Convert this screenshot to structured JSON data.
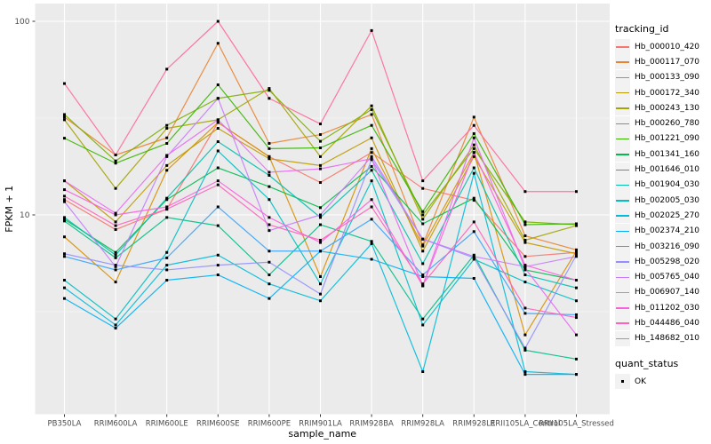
{
  "chart_data": {
    "type": "line",
    "title": "",
    "xlabel": "sample_name",
    "ylabel": "FPKM + 1",
    "y_scale": "log10",
    "ylim": [
      0.95,
      120
    ],
    "y_ticks": [
      10,
      100
    ],
    "y_minor_gridlines": [
      3.162,
      31.62
    ],
    "grid": true,
    "legend_position": "right",
    "legend_title": "tracking_id",
    "point_shape": "filled-square",
    "point_color": "#000000",
    "panel_bg": "#EBEBEB",
    "grid_color": "#FFFFFF",
    "axis_text_color": "#4D4D4D",
    "axis_title_color": "#000000",
    "legend_key_bg": "#F2F2F2",
    "quant_legend": {
      "title": "quant_status",
      "items": [
        {
          "label": "OK",
          "shape": "filled-square",
          "color": "#000000"
        }
      ]
    },
    "categories": [
      "PB350LA",
      "RRIM600LA",
      "RRIM600LE",
      "RRIM600SE",
      "RRIM600PE",
      "RRIM901LA",
      "RRIM928BA",
      "RRIM928LA",
      "RRIM928LE",
      "RRII105LA_Control",
      "RRII105LA_Stressed"
    ],
    "series": [
      {
        "name": "Hb_000010_420",
        "color": "#F8766D",
        "values": [
          12,
          8.4,
          10.7,
          30,
          20,
          14.7,
          21,
          13.7,
          11.9,
          6.1,
          6.4
        ]
      },
      {
        "name": "Hb_000117_070",
        "color": "#EA8331",
        "values": [
          32,
          20.4,
          25,
          77,
          23.4,
          26,
          33,
          7.0,
          32,
          7.8,
          6.6
        ]
      },
      {
        "name": "Hb_000133_090",
        "color": "#D89000",
        "values": [
          7.7,
          4.5,
          17,
          30,
          20,
          4.8,
          22,
          6.9,
          21,
          2.4,
          6.5
        ]
      },
      {
        "name": "Hb_000172_340",
        "color": "#C09B00",
        "values": [
          15,
          9.2,
          18,
          28,
          19.5,
          18,
          25,
          6.5,
          20,
          7.2,
          6.3
        ]
      },
      {
        "name": "Hb_000243_130",
        "color": "#A3A500",
        "values": [
          31,
          13.7,
          28,
          31,
          45,
          20,
          36.6,
          9.5,
          23,
          7.4,
          8.8
        ]
      },
      {
        "name": "Hb_000260_780",
        "color": "#7CAE00",
        "values": [
          33,
          19,
          29,
          40,
          44,
          24,
          35,
          10,
          22,
          9.2,
          8.9
        ]
      },
      {
        "name": "Hb_001221_090",
        "color": "#39B600",
        "values": [
          24.9,
          18.5,
          23.4,
          47,
          22,
          22.2,
          29,
          10.4,
          26.3,
          8.9,
          9.0
        ]
      },
      {
        "name": "Hb_001341_160",
        "color": "#00BB4E",
        "values": [
          9.5,
          6.4,
          12,
          17.5,
          14,
          10.9,
          17.8,
          9.0,
          12.2,
          5.2,
          4.6
        ]
      },
      {
        "name": "Hb_001646_010",
        "color": "#00C087",
        "values": [
          9.3,
          6.0,
          9.7,
          8.8,
          4.9,
          8.9,
          7.3,
          2.9,
          6.2,
          2.0,
          1.8
        ]
      },
      {
        "name": "Hb_001904_030",
        "color": "#00C0AF",
        "values": [
          9.7,
          6.2,
          12.2,
          23.9,
          16,
          9.7,
          17,
          5.6,
          17.5,
          4.9,
          4.2
        ]
      },
      {
        "name": "Hb_002005_030",
        "color": "#00BFC4",
        "values": [
          4.6,
          2.9,
          6.4,
          21.4,
          12,
          4.4,
          15,
          2.7,
          5.9,
          4.5,
          3.6
        ]
      },
      {
        "name": "Hb_002025_270",
        "color": "#00BBDA",
        "values": [
          4.2,
          2.7,
          5.5,
          6.2,
          4.4,
          3.6,
          7.1,
          1.55,
          16.4,
          1.55,
          1.5
        ]
      },
      {
        "name": "Hb_002374_210",
        "color": "#00B0F6",
        "values": [
          3.7,
          2.6,
          4.6,
          4.9,
          3.7,
          6.5,
          5.9,
          4.8,
          4.7,
          1.5,
          1.5
        ]
      },
      {
        "name": "Hb_003216_090",
        "color": "#35A2FF",
        "values": [
          6.1,
          5.2,
          6.0,
          11,
          6.5,
          6.5,
          9.5,
          4.9,
          8.2,
          3.1,
          3.05
        ]
      },
      {
        "name": "Hb_005298_020",
        "color": "#9590FF",
        "values": [
          6.3,
          5.5,
          5.2,
          5.5,
          5.7,
          3.9,
          19.3,
          7.5,
          6.0,
          2.05,
          6.2
        ]
      },
      {
        "name": "Hb_005765_040",
        "color": "#C77CFF",
        "values": [
          11.7,
          5.4,
          20,
          40,
          8.3,
          10,
          20,
          7.5,
          6.1,
          5.4,
          6.1
        ]
      },
      {
        "name": "Hb_006907_140",
        "color": "#E76BF3",
        "values": [
          15,
          10.2,
          20.3,
          31,
          16.6,
          17.3,
          19.5,
          4.3,
          25,
          5.3,
          2.4
        ]
      },
      {
        "name": "Hb_011202_030",
        "color": "#FA62DB",
        "values": [
          13.5,
          10.0,
          11,
          15,
          9.7,
          7.2,
          12,
          4.3,
          21,
          5.5,
          4.6
        ]
      },
      {
        "name": "Hb_044486_040",
        "color": "#FF62BC",
        "values": [
          12.5,
          8.8,
          10.7,
          14.3,
          8.9,
          7.4,
          11,
          4.4,
          9.2,
          3.3,
          2.95
        ]
      },
      {
        "name": "Hb_148682_010",
        "color": "#FF6A98",
        "values": [
          47.7,
          20.4,
          56.6,
          100,
          40,
          29.5,
          89.6,
          15,
          29,
          13.2,
          13.2
        ]
      }
    ]
  }
}
